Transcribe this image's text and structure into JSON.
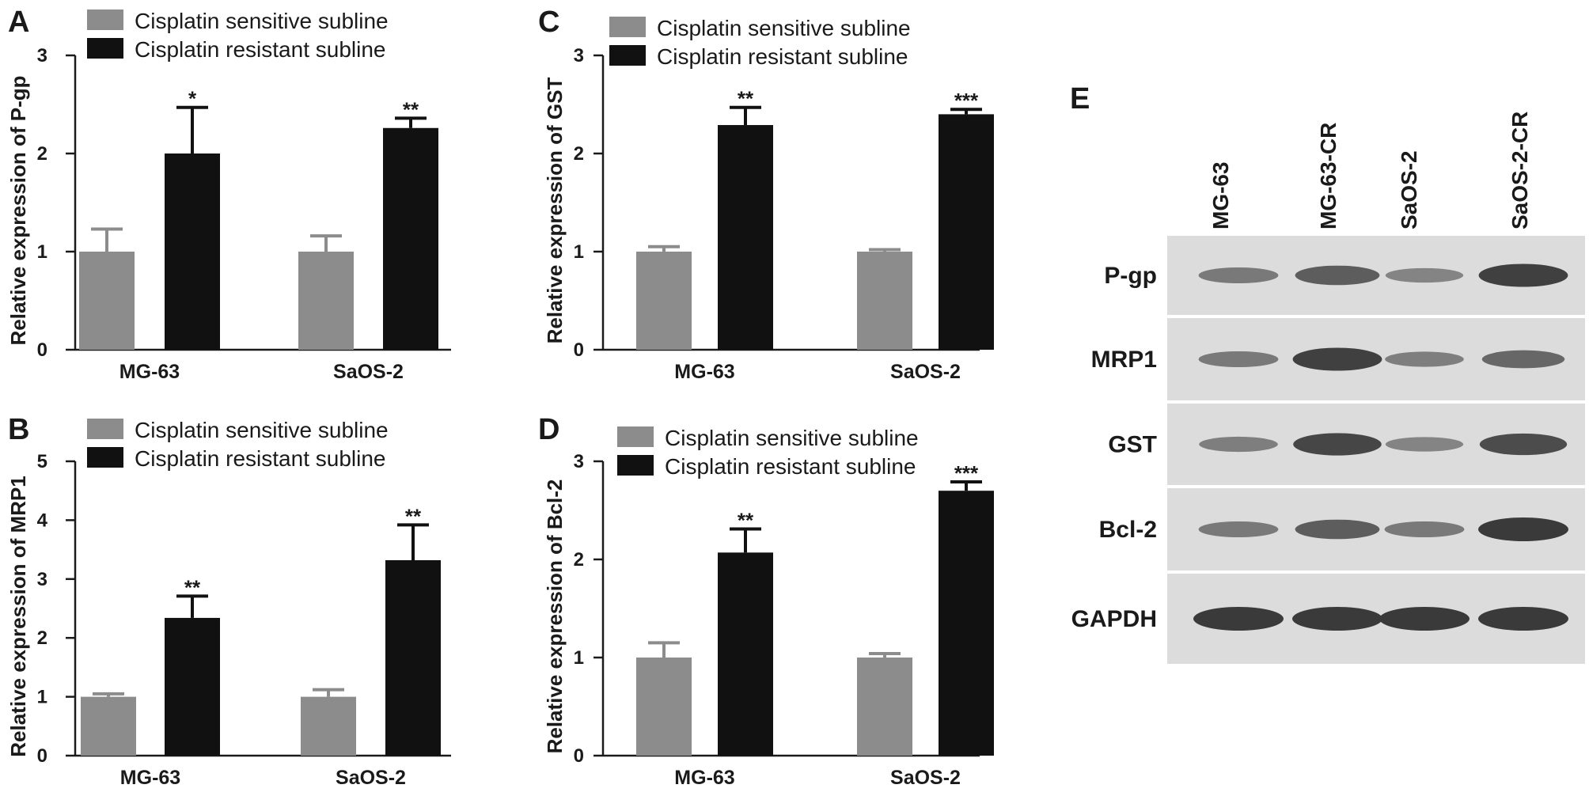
{
  "colors": {
    "sensitive_bar": "#8c8c8c",
    "resistant_bar": "#111111",
    "blot_background": "#dcdcdc",
    "band": "#3a3a3a"
  },
  "chart_data": [
    {
      "panel": "A",
      "type": "bar",
      "ylabel": "Relative expression of P-gp",
      "ylim": [
        0,
        3
      ],
      "yticks": [
        0,
        1,
        2,
        3
      ],
      "categories": [
        "MG-63",
        "SaOS-2"
      ],
      "legend_position": "top-left",
      "series": [
        {
          "name": "Cisplatin sensitive subline",
          "values": [
            1.0,
            1.0
          ],
          "errors": [
            0.23,
            0.16
          ]
        },
        {
          "name": "Cisplatin resistant subline",
          "values": [
            2.0,
            2.26
          ],
          "errors": [
            0.47,
            0.1
          ]
        }
      ],
      "significance": [
        "*",
        "**"
      ]
    },
    {
      "panel": "B",
      "type": "bar",
      "ylabel": "Relative expression of MRP1",
      "ylim": [
        0,
        5
      ],
      "yticks": [
        0,
        1,
        2,
        3,
        4,
        5
      ],
      "categories": [
        "MG-63",
        "SaOS-2"
      ],
      "legend_position": "top-left",
      "series": [
        {
          "name": "Cisplatin sensitive subline",
          "values": [
            1.0,
            1.0
          ],
          "errors": [
            0.05,
            0.12
          ]
        },
        {
          "name": "Cisplatin resistant subline",
          "values": [
            2.34,
            3.32
          ],
          "errors": [
            0.37,
            0.6
          ]
        }
      ],
      "significance": [
        "**",
        "**"
      ]
    },
    {
      "panel": "C",
      "type": "bar",
      "ylabel": "Relative expression of GST",
      "ylim": [
        0,
        3
      ],
      "yticks": [
        0,
        1,
        2,
        3
      ],
      "categories": [
        "MG-63",
        "SaOS-2"
      ],
      "legend_position": "top-left",
      "series": [
        {
          "name": "Cisplatin sensitive subline",
          "values": [
            1.0,
            1.0
          ],
          "errors": [
            0.05,
            0.02
          ]
        },
        {
          "name": "Cisplatin resistant subline",
          "values": [
            2.29,
            2.4
          ],
          "errors": [
            0.18,
            0.05
          ]
        }
      ],
      "significance": [
        "**",
        "***"
      ]
    },
    {
      "panel": "D",
      "type": "bar",
      "ylabel": "Relative expression of Bcl-2",
      "ylim": [
        0,
        3
      ],
      "yticks": [
        0,
        1,
        2,
        3
      ],
      "categories": [
        "MG-63",
        "SaOS-2"
      ],
      "legend_position": "top-left",
      "series": [
        {
          "name": "Cisplatin sensitive subline",
          "values": [
            1.0,
            1.0
          ],
          "errors": [
            0.15,
            0.04
          ]
        },
        {
          "name": "Cisplatin resistant subline",
          "values": [
            2.07,
            2.7
          ],
          "errors": [
            0.24,
            0.09
          ]
        }
      ],
      "significance": [
        "**",
        "***"
      ]
    }
  ],
  "blot": {
    "panel": "E",
    "columns": [
      "MG-63",
      "MG-63-CR",
      "SaOS-2",
      "SaOS-2-CR"
    ],
    "rows": [
      {
        "label": "P-gp",
        "intensities": [
          0.45,
          0.7,
          0.35,
          0.95
        ]
      },
      {
        "label": "MRP1",
        "intensities": [
          0.45,
          0.95,
          0.4,
          0.6
        ]
      },
      {
        "label": "GST",
        "intensities": [
          0.4,
          0.9,
          0.35,
          0.85
        ]
      },
      {
        "label": "Bcl-2",
        "intensities": [
          0.45,
          0.7,
          0.45,
          1.0
        ]
      },
      {
        "label": "GAPDH",
        "intensities": [
          1.0,
          1.0,
          1.0,
          1.0
        ]
      }
    ]
  }
}
